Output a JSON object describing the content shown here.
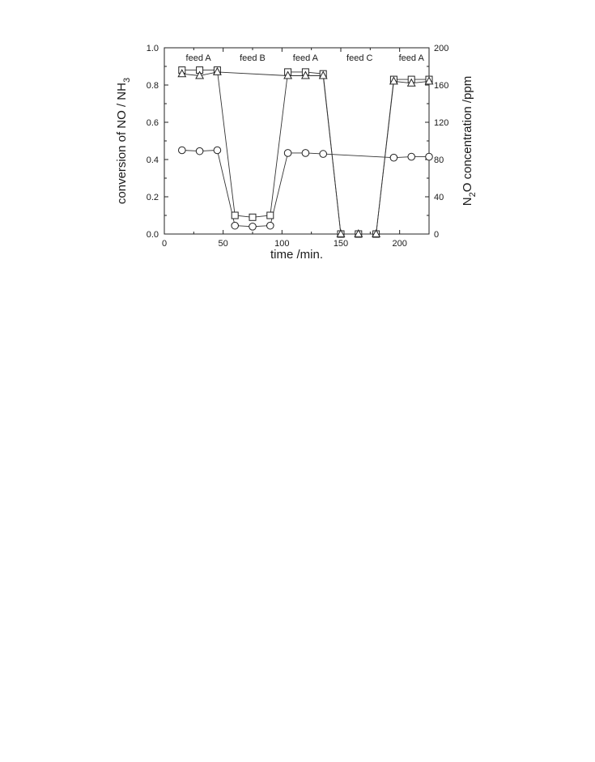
{
  "chart_data": {
    "type": "line",
    "xlabel": "time /min.",
    "ylabel_left_main": "conversion of NO / NH",
    "ylabel_left_sub": "3",
    "ylabel_right_pre": "N",
    "ylabel_right_sub": "2",
    "ylabel_right_post": "O concentration /ppm",
    "xlim": [
      0,
      225
    ],
    "ylim_left": [
      0,
      1.0
    ],
    "ylim_right": [
      0,
      200
    ],
    "x_ticks": [
      0,
      50,
      100,
      150,
      200
    ],
    "y_left_ticks": [
      "0.0",
      "0.2",
      "0.4",
      "0.6",
      "0.8",
      "1.0"
    ],
    "y_right_ticks": [
      "0",
      "40",
      "80",
      "120",
      "160",
      "200"
    ],
    "annotations": [
      {
        "text": "feed A",
        "x": 29
      },
      {
        "text": "feed B",
        "x": 75
      },
      {
        "text": "feed A",
        "x": 120
      },
      {
        "text": "feed C",
        "x": 166
      },
      {
        "text": "feed A",
        "x": 210
      }
    ],
    "series": [
      {
        "marker": "square",
        "axis": "left",
        "points": [
          [
            15,
            0.88
          ],
          [
            30,
            0.88
          ],
          [
            45,
            0.88
          ],
          [
            60,
            0.1
          ],
          [
            75,
            0.09
          ],
          [
            90,
            0.1
          ],
          [
            105,
            0.87
          ],
          [
            120,
            0.87
          ],
          [
            135,
            0.86
          ],
          [
            150,
            0.0
          ],
          [
            165,
            0.0
          ],
          [
            180,
            0.0
          ],
          [
            195,
            0.83
          ],
          [
            210,
            0.83
          ],
          [
            225,
            0.83
          ]
        ]
      },
      {
        "marker": "triangle",
        "axis": "left",
        "points": [
          [
            15,
            0.86
          ],
          [
            30,
            0.85
          ],
          [
            45,
            0.87
          ],
          [
            105,
            0.85
          ],
          [
            120,
            0.85
          ],
          [
            135,
            0.85
          ],
          [
            150,
            0.0
          ],
          [
            165,
            0.0
          ],
          [
            180,
            0.0
          ],
          [
            195,
            0.82
          ],
          [
            210,
            0.81
          ],
          [
            225,
            0.82
          ]
        ]
      },
      {
        "marker": "circle",
        "axis": "left",
        "points": [
          [
            15,
            0.45
          ],
          [
            30,
            0.445
          ],
          [
            45,
            0.45
          ],
          [
            60,
            0.045
          ],
          [
            75,
            0.04
          ],
          [
            90,
            0.045
          ],
          [
            105,
            0.435
          ],
          [
            120,
            0.435
          ],
          [
            135,
            0.43
          ],
          [
            195,
            0.41
          ],
          [
            210,
            0.415
          ],
          [
            225,
            0.415
          ]
        ]
      }
    ],
    "grid": false
  }
}
